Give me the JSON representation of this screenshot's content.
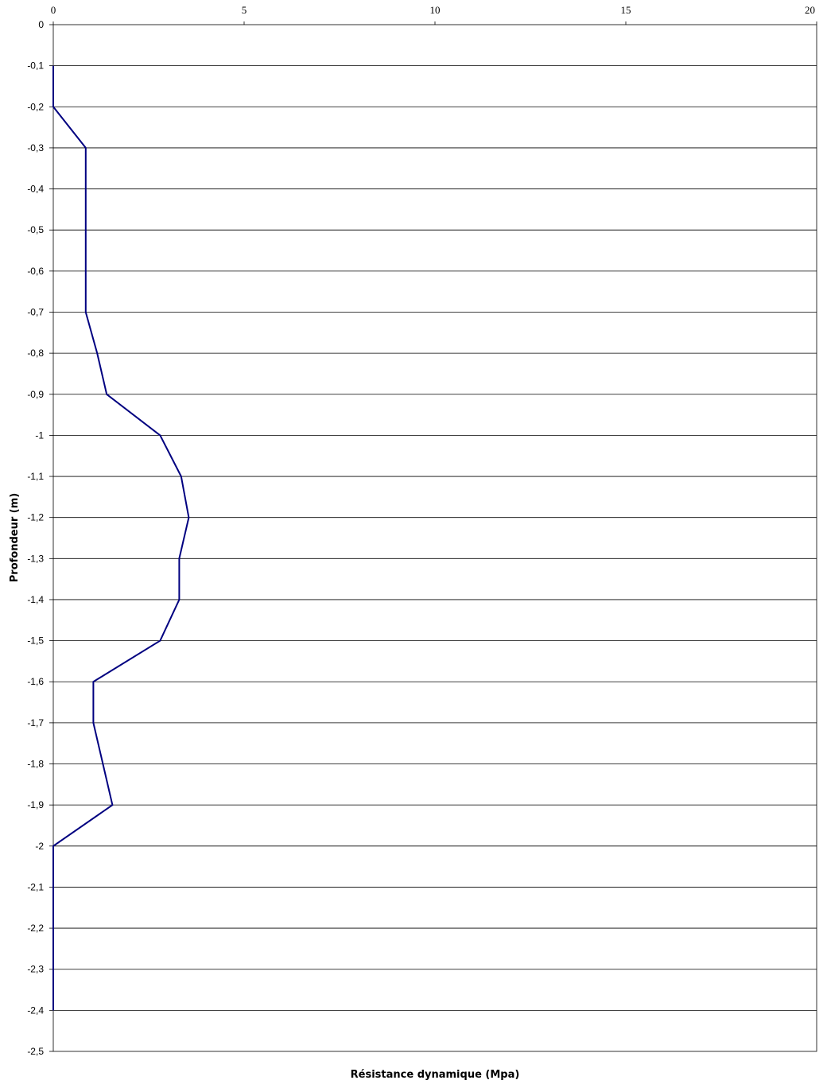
{
  "chart_data": {
    "type": "line",
    "title": "",
    "xlabel": "Résistance dynamique (Mpa)",
    "ylabel": "Profondeur (m)",
    "xlim": [
      0,
      20
    ],
    "ylim": [
      -2.5,
      0
    ],
    "x_axis_position": "top",
    "grid": "horizontal",
    "line_color": "#000080",
    "x_ticks": [
      "0",
      "5",
      "10",
      "15",
      "20"
    ],
    "y_ticks": [
      "0",
      "-0,1",
      "-0,2",
      "-0,3",
      "-0,4",
      "-0,5",
      "-0,6",
      "-0,7",
      "-0,8",
      "-0,9",
      "-1",
      "-1,1",
      "-1,2",
      "-1,3",
      "-1,4",
      "-1,5",
      "-1,6",
      "-1,7",
      "-1,8",
      "-1,9",
      "-2",
      "-2,1",
      "-2,2",
      "-2,3",
      "-2,4",
      "-2,5"
    ],
    "series": [
      {
        "x": [
          0,
          0,
          0.85,
          0.85,
          0.85,
          0.85,
          0.85,
          1.15,
          1.4,
          2.8,
          3.35,
          3.55,
          3.3,
          3.3,
          2.8,
          1.05,
          1.05,
          1.3,
          1.55,
          0,
          0,
          0,
          0,
          0
        ],
        "y": [
          -0.1,
          -0.2,
          -0.3,
          -0.4,
          -0.5,
          -0.6,
          -0.7,
          -0.8,
          -0.9,
          -1.0,
          -1.1,
          -1.2,
          -1.3,
          -1.4,
          -1.5,
          -1.6,
          -1.7,
          -1.8,
          -1.9,
          -2.0,
          -2.1,
          -2.2,
          -2.3,
          -2.4
        ]
      }
    ]
  }
}
